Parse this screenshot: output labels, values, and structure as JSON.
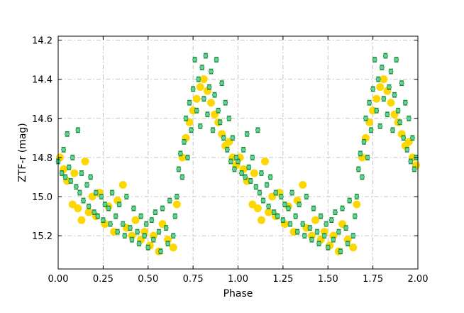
{
  "chart_data": {
    "type": "scatter",
    "title": "",
    "xlabel": "Phase",
    "ylabel": "ZTF-r (mag)",
    "xlim": [
      0.0,
      2.0
    ],
    "ylim": [
      15.37,
      14.18
    ],
    "y_inverted": true,
    "grid": true,
    "grid_style": "dash-dot",
    "legend": "none",
    "xticks": [
      "0.00",
      "0.25",
      "0.50",
      "0.75",
      "1.00",
      "1.25",
      "1.50",
      "1.75",
      "2.00"
    ],
    "yticks": [
      "14.2",
      "14.4",
      "14.6",
      "14.8",
      "15.0",
      "15.2"
    ],
    "colors": {
      "yellow_points": "#FFD700",
      "green_points": "#5ED3A0",
      "green_edges": "#1E8A2E",
      "grid": "#b0b0b0"
    },
    "curve_period_phase": 1.0,
    "curve_keyframes": {
      "phase": [
        0.0,
        0.1,
        0.2,
        0.3,
        0.4,
        0.5,
        0.6,
        0.66,
        0.7,
        0.74,
        0.78,
        0.82,
        0.86,
        0.9,
        0.95,
        1.0
      ],
      "mag": [
        14.84,
        14.88,
        14.95,
        15.03,
        15.1,
        15.15,
        15.16,
        15.1,
        14.85,
        14.62,
        14.48,
        14.42,
        14.47,
        14.58,
        14.72,
        14.84
      ]
    },
    "series": [
      {
        "style": "yellow-dot",
        "x": [
          0.01,
          0.03,
          0.05,
          0.08,
          0.09,
          0.11,
          0.13,
          0.15,
          0.17,
          0.19,
          0.21,
          0.23,
          0.26,
          0.28,
          0.31,
          0.33,
          0.36,
          0.38,
          0.41,
          0.43,
          0.46,
          0.48,
          0.51,
          0.53,
          0.56,
          0.58,
          0.61,
          0.64,
          0.66,
          0.69,
          0.71,
          0.73,
          0.75,
          0.77,
          0.79,
          0.81,
          0.83,
          0.85,
          0.87,
          0.89,
          0.91,
          0.93,
          0.95,
          0.97,
          0.99
        ],
        "y": [
          14.8,
          14.86,
          14.92,
          15.04,
          14.88,
          15.06,
          15.12,
          14.82,
          15.08,
          15.0,
          15.1,
          14.98,
          15.14,
          15.05,
          15.18,
          15.02,
          14.94,
          15.16,
          15.2,
          15.12,
          15.22,
          15.18,
          15.25,
          15.2,
          15.28,
          15.14,
          15.22,
          15.26,
          15.04,
          14.8,
          14.7,
          14.62,
          14.56,
          14.5,
          14.44,
          14.4,
          14.46,
          14.52,
          14.58,
          14.62,
          14.68,
          14.74,
          14.72,
          14.8,
          14.84
        ]
      },
      {
        "style": "green-errorbar",
        "x": [
          0.0,
          0.02,
          0.03,
          0.04,
          0.05,
          0.06,
          0.07,
          0.08,
          0.1,
          0.11,
          0.12,
          0.13,
          0.14,
          0.16,
          0.17,
          0.18,
          0.2,
          0.21,
          0.22,
          0.24,
          0.25,
          0.26,
          0.28,
          0.29,
          0.3,
          0.32,
          0.33,
          0.34,
          0.36,
          0.37,
          0.38,
          0.4,
          0.41,
          0.42,
          0.44,
          0.45,
          0.46,
          0.48,
          0.49,
          0.5,
          0.52,
          0.53,
          0.54,
          0.56,
          0.57,
          0.58,
          0.6,
          0.61,
          0.62,
          0.64,
          0.65,
          0.66,
          0.67,
          0.68,
          0.69,
          0.7,
          0.71,
          0.72,
          0.73,
          0.74,
          0.75,
          0.76,
          0.77,
          0.78,
          0.79,
          0.8,
          0.81,
          0.82,
          0.83,
          0.84,
          0.85,
          0.86,
          0.87,
          0.88,
          0.89,
          0.9,
          0.91,
          0.92,
          0.93,
          0.94,
          0.95,
          0.96,
          0.97,
          0.98,
          0.99
        ],
        "y": [
          14.82,
          14.88,
          14.76,
          14.9,
          14.68,
          14.85,
          14.92,
          14.8,
          14.95,
          14.66,
          14.98,
          14.88,
          15.02,
          14.94,
          15.05,
          14.9,
          15.08,
          14.98,
          15.1,
          15.0,
          15.12,
          15.04,
          15.06,
          15.14,
          14.98,
          15.1,
          15.18,
          15.04,
          15.14,
          15.2,
          15.0,
          15.16,
          15.22,
          15.06,
          15.18,
          15.24,
          15.1,
          15.2,
          15.14,
          15.26,
          15.12,
          15.22,
          15.08,
          15.18,
          15.28,
          15.06,
          15.16,
          15.24,
          15.02,
          15.2,
          15.1,
          15.0,
          14.86,
          14.78,
          14.9,
          14.72,
          14.6,
          14.8,
          14.52,
          14.66,
          14.45,
          14.3,
          14.56,
          14.4,
          14.64,
          14.34,
          14.5,
          14.28,
          14.58,
          14.44,
          14.36,
          14.66,
          14.48,
          14.3,
          14.56,
          14.62,
          14.42,
          14.7,
          14.52,
          14.76,
          14.6,
          14.82,
          14.7,
          14.86,
          14.8
        ],
        "yerr": 0.012
      }
    ]
  }
}
